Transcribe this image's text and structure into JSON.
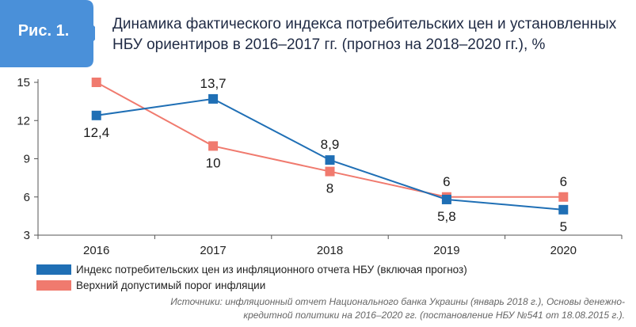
{
  "badge": {
    "label": "Рис. 1.",
    "color": "#4a90d9"
  },
  "title": "Динамика фактического индекса потребительских цен и установленных НБУ ориентиров в 2016–2017 гг. (прогноз на 2018–2020 гг.), %",
  "legend": [
    {
      "label": "Индекс потребительских цен из инфляционного отчета НБУ (включая прогноз)",
      "color": "#1f6fb5"
    },
    {
      "label": "Верхний допустимый порог инфляции",
      "color": "#f07a6e"
    }
  ],
  "source": "Источники: инфляционный отчет Национального банка Украины (январь 2018 г.), Основы денежно-кредитной политики на 2016–2020 гг. (постановление НБУ №541 от 18.08.2015 г.).",
  "chart_data": {
    "type": "line",
    "categories": [
      "2016",
      "2017",
      "2018",
      "2019",
      "2020"
    ],
    "ylim": [
      3,
      15
    ],
    "yticks": [
      3,
      6,
      9,
      12,
      15
    ],
    "grid": false,
    "legend_position": "bottom",
    "series": [
      {
        "name": "Индекс потребительских цен из инфляционного отчета НБУ (включая прогноз)",
        "values": [
          12.4,
          13.7,
          8.9,
          5.8,
          5
        ],
        "labels": [
          "12,4",
          "13,7",
          "8,9",
          "5,8",
          "5"
        ],
        "color": "#1f6fb5"
      },
      {
        "name": "Верхний допустимый порог инфляции",
        "values": [
          15,
          10,
          8,
          6,
          6
        ],
        "labels": [
          "15",
          "10",
          "8",
          "6",
          "6"
        ],
        "color": "#f07a6e"
      }
    ]
  }
}
